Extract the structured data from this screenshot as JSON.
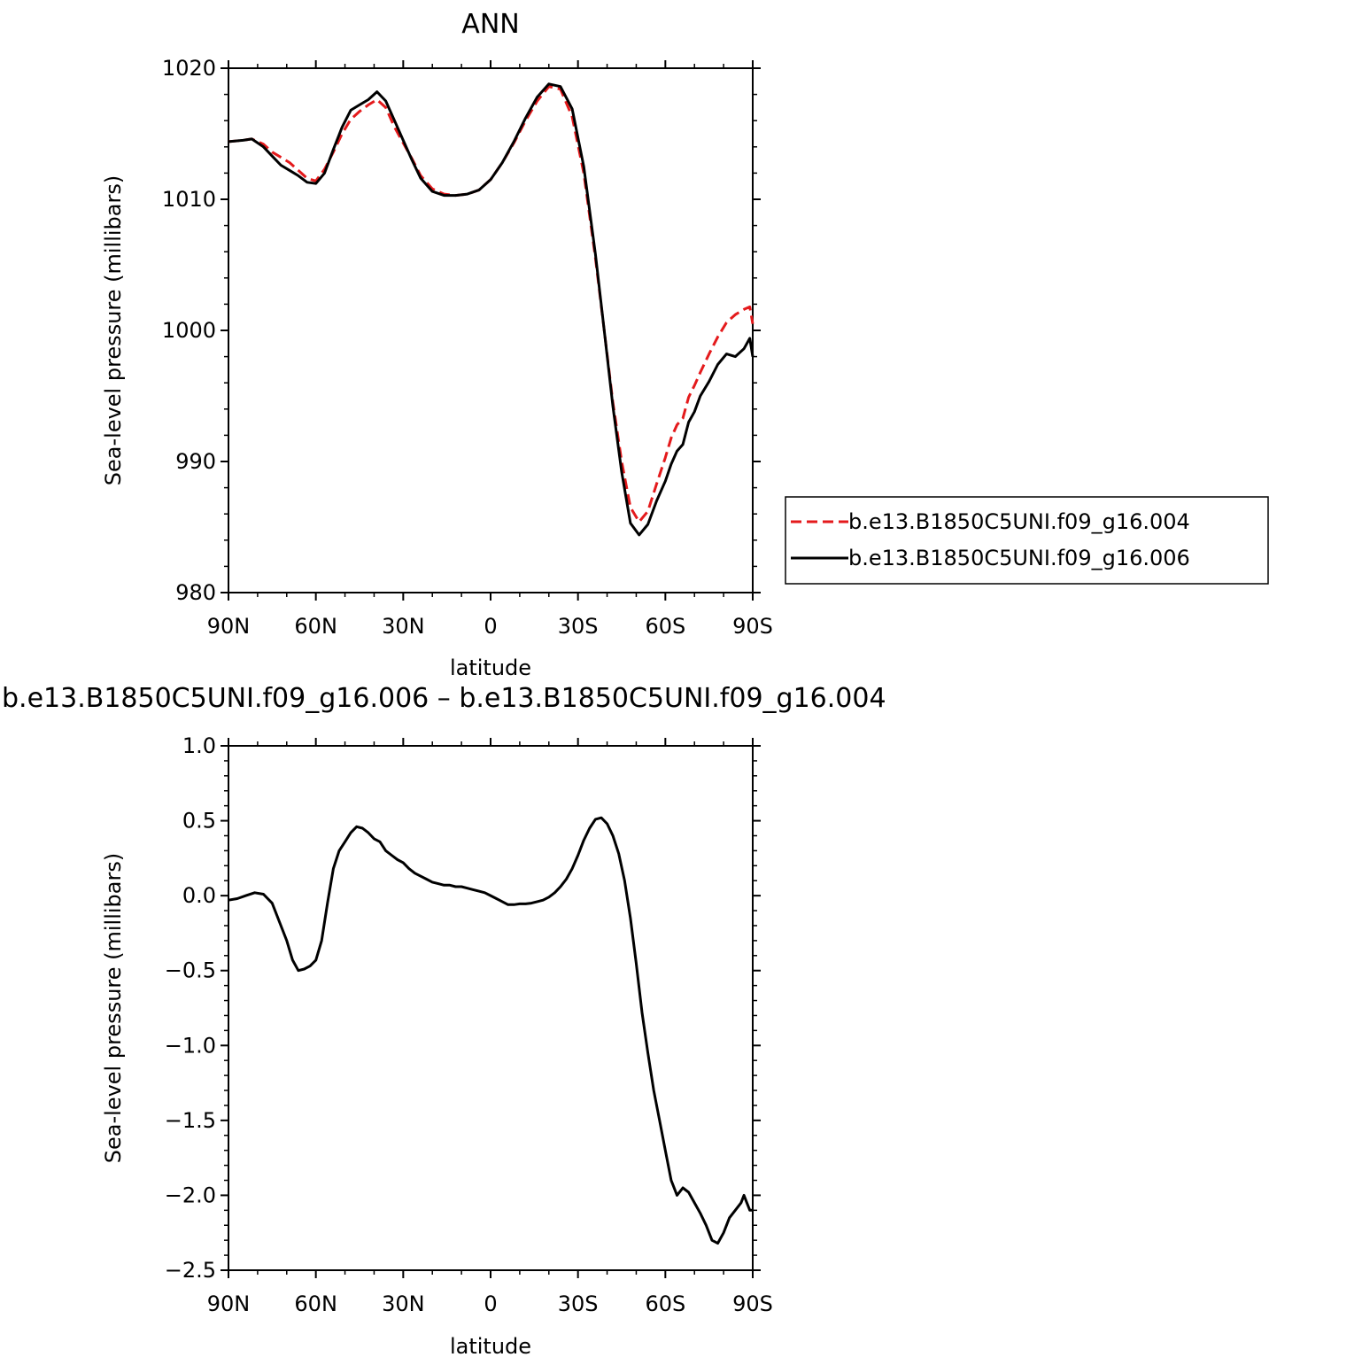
{
  "chart_data": [
    {
      "type": "line",
      "title": "ANN",
      "xlabel": "latitude",
      "ylabel": "Sea-level pressure (millibars)",
      "xlim": [
        90,
        -90
      ],
      "ylim": [
        980,
        1020
      ],
      "xticks": [
        90,
        60,
        30,
        0,
        -30,
        -60,
        -90
      ],
      "xtick_labels": [
        "90N",
        "60N",
        "30N",
        "0",
        "30S",
        "60S",
        "90S"
      ],
      "yticks": [
        980,
        990,
        1000,
        1010,
        1020
      ],
      "ytick_labels": [
        "980",
        "990",
        "1000",
        "1010",
        "1020"
      ],
      "legend_position": "right",
      "grid": false,
      "series": [
        {
          "name": "b.e13.B1850C5UNI.f09_g16.004",
          "color": "#e41a1c",
          "dash": "dashed",
          "x": [
            90,
            85,
            82,
            78,
            75,
            72,
            69,
            66,
            63,
            60,
            57,
            54,
            51,
            48,
            45,
            42,
            39,
            36,
            33,
            30,
            27,
            24,
            20,
            16,
            12,
            8,
            4,
            0,
            -4,
            -8,
            -12,
            -16,
            -20,
            -24,
            -28,
            -32,
            -36,
            -39,
            -42,
            -45,
            -48,
            -51,
            -54,
            -57,
            -60,
            -62,
            -64,
            -66,
            -68,
            -70,
            -72,
            -75,
            -78,
            -81,
            -84,
            -87,
            -89,
            -90
          ],
          "y": [
            1014.4,
            1014.5,
            1014.6,
            1014.2,
            1013.6,
            1013.2,
            1012.8,
            1012.2,
            1011.6,
            1011.4,
            1012.3,
            1013.6,
            1015.0,
            1016.1,
            1016.7,
            1017.2,
            1017.6,
            1017.0,
            1015.5,
            1014.3,
            1013.1,
            1011.8,
            1010.8,
            1010.4,
            1010.3,
            1010.4,
            1010.7,
            1011.5,
            1012.8,
            1014.3,
            1016.0,
            1017.5,
            1018.6,
            1018.4,
            1016.3,
            1012.0,
            1005.5,
            1000.0,
            994.5,
            990.0,
            986.5,
            985.4,
            986.2,
            988.3,
            990.3,
            991.8,
            992.8,
            993.3,
            994.9,
            995.8,
            996.8,
            998.2,
            999.5,
            1000.6,
            1001.2,
            1001.6,
            1001.8,
            1000.5
          ]
        },
        {
          "name": "b.e13.B1850C5UNI.f09_g16.006",
          "color": "#000000",
          "dash": "solid",
          "x": [
            90,
            85,
            82,
            78,
            75,
            72,
            69,
            66,
            63,
            60,
            57,
            54,
            51,
            48,
            45,
            42,
            39,
            36,
            33,
            30,
            27,
            24,
            20,
            16,
            12,
            8,
            4,
            0,
            -4,
            -8,
            -12,
            -16,
            -20,
            -24,
            -28,
            -32,
            -36,
            -39,
            -42,
            -45,
            -48,
            -51,
            -54,
            -57,
            -60,
            -62,
            -64,
            -66,
            -68,
            -70,
            -72,
            -75,
            -78,
            -81,
            -84,
            -87,
            -89,
            -90
          ],
          "y": [
            1014.4,
            1014.5,
            1014.6,
            1014.0,
            1013.3,
            1012.6,
            1012.2,
            1011.8,
            1011.3,
            1011.2,
            1012.0,
            1013.8,
            1015.5,
            1016.8,
            1017.2,
            1017.6,
            1018.2,
            1017.5,
            1016.0,
            1014.5,
            1013.0,
            1011.6,
            1010.6,
            1010.3,
            1010.3,
            1010.4,
            1010.7,
            1011.5,
            1012.8,
            1014.4,
            1016.2,
            1017.8,
            1018.8,
            1018.6,
            1016.9,
            1012.5,
            1005.8,
            1000.0,
            994.2,
            989.2,
            985.3,
            984.4,
            985.2,
            987.0,
            988.5,
            989.8,
            990.8,
            991.3,
            993.0,
            993.8,
            995.0,
            996.1,
            997.4,
            998.2,
            998.0,
            998.6,
            999.4,
            998.0
          ]
        }
      ]
    },
    {
      "type": "line",
      "title": "b.e13.B1850C5UNI.f09_g16.006 – b.e13.B1850C5UNI.f09_g16.004",
      "xlabel": "latitude",
      "ylabel": "Sea-level pressure (millibars)",
      "xlim": [
        90,
        -90
      ],
      "ylim": [
        -2.5,
        1.0
      ],
      "xticks": [
        90,
        60,
        30,
        0,
        -30,
        -60,
        -90
      ],
      "xtick_labels": [
        "90N",
        "60N",
        "30N",
        "0",
        "30S",
        "60S",
        "90S"
      ],
      "yticks": [
        -2.5,
        -2.0,
        -1.5,
        -1.0,
        -0.5,
        0.0,
        0.5,
        1.0
      ],
      "ytick_labels": [
        "−2.5",
        "−2.0",
        "−1.5",
        "−1.0",
        "−0.5",
        "0.0",
        "0.5",
        "1.0"
      ],
      "grid": false,
      "series": [
        {
          "color": "#000000",
          "dash": "solid",
          "x": [
            90,
            87,
            84,
            81,
            78,
            75,
            72,
            70,
            68,
            66,
            64,
            62,
            60,
            58,
            56,
            54,
            52,
            50,
            48,
            46,
            44,
            42,
            40,
            38,
            36,
            34,
            32,
            30,
            28,
            26,
            24,
            22,
            20,
            18,
            16,
            14,
            12,
            10,
            8,
            6,
            4,
            2,
            0,
            -2,
            -4,
            -6,
            -8,
            -10,
            -12,
            -14,
            -16,
            -18,
            -20,
            -22,
            -24,
            -26,
            -28,
            -30,
            -32,
            -34,
            -36,
            -38,
            -40,
            -42,
            -44,
            -46,
            -48,
            -50,
            -52,
            -54,
            -56,
            -58,
            -60,
            -62,
            -64,
            -66,
            -68,
            -70,
            -72,
            -74,
            -76,
            -78,
            -80,
            -82,
            -84,
            -86,
            -87,
            -88,
            -89,
            -90
          ],
          "y": [
            -0.03,
            -0.02,
            0.0,
            0.02,
            0.01,
            -0.05,
            -0.2,
            -0.3,
            -0.43,
            -0.5,
            -0.49,
            -0.47,
            -0.43,
            -0.3,
            -0.05,
            0.18,
            0.3,
            0.36,
            0.42,
            0.46,
            0.45,
            0.42,
            0.38,
            0.36,
            0.3,
            0.27,
            0.24,
            0.22,
            0.18,
            0.15,
            0.13,
            0.11,
            0.09,
            0.08,
            0.07,
            0.07,
            0.06,
            0.06,
            0.05,
            0.04,
            0.03,
            0.02,
            0.0,
            -0.02,
            -0.04,
            -0.06,
            -0.06,
            -0.055,
            -0.055,
            -0.05,
            -0.04,
            -0.03,
            -0.01,
            0.02,
            0.06,
            0.11,
            0.18,
            0.27,
            0.37,
            0.45,
            0.51,
            0.52,
            0.48,
            0.4,
            0.28,
            0.1,
            -0.15,
            -0.45,
            -0.78,
            -1.05,
            -1.3,
            -1.5,
            -1.7,
            -1.9,
            -2.0,
            -1.95,
            -1.98,
            -2.05,
            -2.12,
            -2.2,
            -2.3,
            -2.32,
            -2.25,
            -2.15,
            -2.1,
            -2.05,
            -2.0,
            -2.05,
            -2.1,
            -2.1
          ]
        }
      ]
    }
  ]
}
